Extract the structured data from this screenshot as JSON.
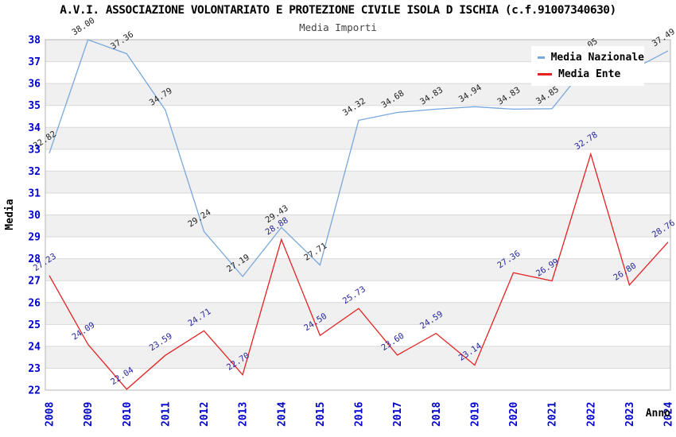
{
  "header": {
    "title": "A.V.I. ASSOCIAZIONE VOLONTARIATO E PROTEZIONE CIVILE ISOLA D ISCHIA (c.f.91007340630)",
    "subtitle": "Media Importi"
  },
  "axes": {
    "x_label": "Anno",
    "y_label": "Media"
  },
  "legend": {
    "items": [
      {
        "label": "Media Nazionale",
        "color": "#79a8dc"
      },
      {
        "label": "Media Ente",
        "color": "#e32222"
      }
    ]
  },
  "colors": {
    "tick_text": "#0000cc",
    "band_gray": "#f0f0f0",
    "gridline": "#d9d9d9",
    "plot_border": "#b5b5b5",
    "nazionale_line": "#79a8dc",
    "ente_line": "#e32222",
    "nazionale_label_text": "#222222",
    "ente_label_text": "#26269e",
    "title_text": "#000000",
    "subtitle_text": "#444444"
  },
  "chart_data": {
    "type": "line",
    "title": "Media Importi",
    "xlabel": "Anno",
    "ylabel": "Media",
    "ylim": [
      22,
      38
    ],
    "y_ticks": [
      22,
      23,
      24,
      25,
      26,
      27,
      28,
      29,
      30,
      31,
      32,
      33,
      34,
      35,
      36,
      37,
      38
    ],
    "grid": "horizontal gridlines with alternating gray bands",
    "legend_position": "top-right",
    "categories": [
      "2008",
      "2009",
      "2010",
      "2011",
      "2012",
      "2013",
      "2014",
      "2015",
      "2016",
      "2017",
      "2018",
      "2019",
      "2020",
      "2021",
      "2022",
      "2023",
      "2024"
    ],
    "series": [
      {
        "name": "Media Nazionale",
        "color": "#79a8dc",
        "label_color": "#222222",
        "values": [
          32.82,
          38.0,
          37.36,
          34.79,
          29.24,
          27.19,
          29.43,
          27.71,
          34.32,
          34.68,
          34.83,
          34.94,
          34.83,
          34.85,
          37.05,
          36.57,
          37.49
        ],
        "labels": [
          "32.82",
          "38.00",
          "37.36",
          "34.79",
          "29.24",
          "27.19",
          "29.43",
          "27.71",
          "34.32",
          "34.68",
          "34.83",
          "34.94",
          "34.83",
          "34.85",
          "37.05",
          "",
          "37.49"
        ]
      },
      {
        "name": "Media Ente",
        "color": "#e32222",
        "label_color": "#26269e",
        "values": [
          27.23,
          24.09,
          22.04,
          23.59,
          24.71,
          22.7,
          28.88,
          24.5,
          25.73,
          23.6,
          24.59,
          23.14,
          27.36,
          26.99,
          32.78,
          26.8,
          28.76
        ],
        "labels": [
          "27.23",
          "24.09",
          "22.04",
          "23.59",
          "24.71",
          "22.70",
          "28.88",
          "24.50",
          "25.73",
          "23.60",
          "24.59",
          "23.14",
          "27.36",
          "26.99",
          "32.78",
          "26.80",
          "28.76"
        ]
      }
    ]
  }
}
